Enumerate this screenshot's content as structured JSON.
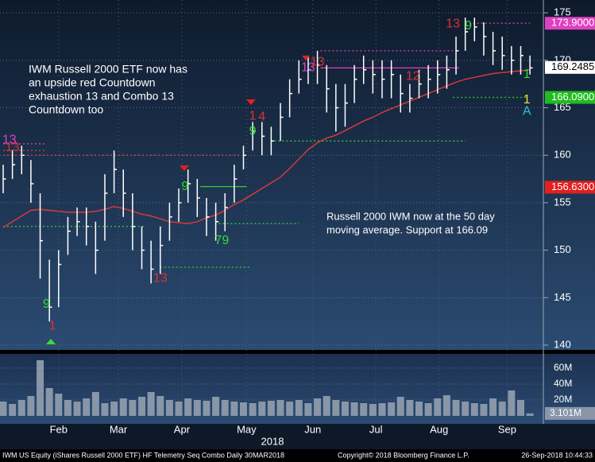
{
  "chart_data": {
    "type": "ohlc",
    "x": [
      0,
      3,
      6,
      9,
      12,
      15,
      18,
      21,
      24,
      27,
      30,
      33,
      36,
      39,
      42,
      45,
      48,
      51,
      54,
      57,
      60,
      63,
      66,
      69,
      72,
      75,
      78,
      81,
      84,
      87,
      90,
      93,
      96,
      99,
      102,
      105,
      108,
      111,
      114,
      117,
      120,
      123,
      126,
      129,
      132,
      135,
      138,
      141,
      144,
      147,
      150,
      153,
      156,
      159,
      162,
      165,
      168,
      171
    ],
    "xlim": [
      0,
      172
    ],
    "xticks": [
      {
        "value": 18,
        "label": "Feb"
      },
      {
        "value": 37.4,
        "label": "Mar"
      },
      {
        "value": 58,
        "label": "Apr"
      },
      {
        "value": 79,
        "label": "May"
      },
      {
        "value": 100.5,
        "label": "Jun"
      },
      {
        "value": 121,
        "label": "Jul"
      },
      {
        "value": 141.5,
        "label": "Aug"
      },
      {
        "value": 163.6,
        "label": "Sep"
      }
    ],
    "x_label": "2018",
    "ylim": [
      139.5,
      176.35
    ],
    "yticks": [
      140,
      145,
      150,
      155,
      160,
      165,
      170,
      175
    ],
    "grid": true,
    "high": [
      159,
      160.5,
      161,
      159.5,
      156,
      149,
      150,
      153.5,
      154.5,
      154.5,
      153,
      158,
      160.5,
      158.5,
      156,
      152.5,
      151,
      152.5,
      155,
      156.5,
      158.5,
      157.5,
      155.5,
      155,
      156,
      159,
      161,
      163.5,
      163.5,
      163,
      165.5,
      168,
      170,
      170.5,
      171,
      169.5,
      167.5,
      167.5,
      169.5,
      170.5,
      170,
      170,
      170,
      168.5,
      167.5,
      169,
      169.5,
      170,
      170.5,
      172.5,
      174.5,
      174.5,
      174,
      173,
      172.5,
      171.5,
      171.5,
      170.5
    ],
    "low": [
      156,
      157.5,
      158,
      155,
      147,
      142.5,
      144,
      149.5,
      151.5,
      150.5,
      147.5,
      151,
      156,
      153.5,
      150,
      148,
      146.5,
      147.5,
      151,
      153,
      155,
      153.5,
      151.5,
      151,
      152,
      155,
      158.5,
      160.5,
      160,
      160,
      161.5,
      164,
      166.5,
      167.5,
      167.5,
      164.5,
      162.5,
      163,
      165.5,
      167.5,
      166.5,
      166,
      166,
      164.5,
      164.5,
      166,
      166,
      166.5,
      167,
      168.5,
      171,
      172,
      170.5,
      169.5,
      169,
      168.5,
      168.5,
      168.5
    ],
    "close": [
      157.5,
      159,
      160,
      157,
      151,
      144,
      148.5,
      152,
      153,
      152.5,
      150,
      156,
      158.5,
      156,
      152.5,
      150,
      148,
      150.5,
      153.5,
      155,
      157,
      155.5,
      153.5,
      153,
      154.5,
      157.5,
      160,
      162.5,
      162,
      161.5,
      164,
      166.5,
      168,
      169,
      169.5,
      167,
      165,
      165.5,
      168,
      169,
      168.5,
      168,
      168.5,
      166.5,
      166,
      167.5,
      168,
      168.5,
      169,
      171,
      173,
      173.5,
      172.5,
      171,
      170.5,
      170,
      170.5,
      169.2
    ],
    "bar_color": "#ffffff",
    "moving_average": {
      "color": "#d63a3a",
      "values": [
        152.4,
        153,
        153.6,
        154.2,
        154.3,
        154.2,
        154.1,
        154,
        154,
        154,
        154.1,
        154.3,
        154.6,
        154.4,
        154.1,
        153.8,
        153.6,
        153.3,
        153,
        152.9,
        152.8,
        153,
        153.4,
        153.7,
        154.2,
        154.8,
        155.3,
        155.9,
        156.5,
        157.1,
        157.7,
        158.6,
        159.6,
        160.6,
        161.3,
        161.8,
        162.1,
        162.6,
        163.1,
        163.6,
        164,
        164.5,
        164.9,
        165.3,
        165.7,
        166.1,
        166.5,
        166.9,
        167.3,
        167.7,
        168,
        168.2,
        168.4,
        168.6,
        168.7,
        168.8,
        168.9,
        169
      ]
    },
    "levels": [
      {
        "value": 173.9,
        "from": 150,
        "to": 171,
        "color": "#e040c0",
        "style": "dotted"
      },
      {
        "value": 171,
        "from": 103,
        "to": 146,
        "color": "#e040c0",
        "style": "dotted"
      },
      {
        "value": 169.2,
        "from": 103,
        "to": 148,
        "color": "#e040c0",
        "style": "solid"
      },
      {
        "value": 166.09,
        "from": 146,
        "to": 170,
        "color": "#33cc33",
        "style": "dotted"
      },
      {
        "value": 161.5,
        "from": 88,
        "to": 150,
        "color": "#33cc33",
        "style": "dotted"
      },
      {
        "value": 156.7,
        "from": 64,
        "to": 79,
        "color": "#33cc33",
        "style": "solid"
      },
      {
        "value": 152.8,
        "from": 70,
        "to": 96,
        "color": "#33cc33",
        "style": "dotted"
      },
      {
        "value": 148.2,
        "from": 51,
        "to": 80,
        "color": "#33cc33",
        "style": "dotted"
      },
      {
        "value": 152.5,
        "from": 0,
        "to": 46,
        "color": "#33cc33",
        "style": "dotted"
      },
      {
        "value": 161.2,
        "from": 0,
        "to": 14,
        "color": "#e040c0",
        "style": "dotted"
      },
      {
        "value": 160.5,
        "from": 0,
        "to": 14,
        "color": "#e04040",
        "style": "dotted"
      },
      {
        "value": 160,
        "from": 0,
        "to": 77,
        "color": "#e04040",
        "style": "dotted"
      }
    ],
    "price_flags": [
      {
        "value": 173.9,
        "label": "173.9000",
        "color": "#e040c0"
      },
      {
        "value": 169.2485,
        "label": "169.2485",
        "color": "#ffffff"
      },
      {
        "value": 166.09,
        "label": "166.0900",
        "color": "#22bb22"
      },
      {
        "value": 156.63,
        "label": "156.6300",
        "color": "#e02020"
      }
    ],
    "counts": [
      {
        "x": 2,
        "y": 161.6,
        "text": "13",
        "color": "#e040c0"
      },
      {
        "x": 3,
        "y": 160.8,
        "text": "13",
        "color": "#e03030"
      },
      {
        "x": 14,
        "y": 144.3,
        "text": "9",
        "color": "#33dd33"
      },
      {
        "x": 16,
        "y": 142,
        "text": "1",
        "color": "#e03030"
      },
      {
        "x": 51,
        "y": 147,
        "text": "13",
        "color": "#e03030"
      },
      {
        "x": 59,
        "y": 156.7,
        "text": "9",
        "color": "#33dd33"
      },
      {
        "x": 71,
        "y": 151,
        "text": "79",
        "color": "#33dd33"
      },
      {
        "x": 81,
        "y": 162.5,
        "text": "9",
        "color": "#33dd33"
      },
      {
        "x": 81,
        "y": 164.1,
        "text": "1",
        "color": "#e03030"
      },
      {
        "x": 84,
        "y": 164,
        "text": "4",
        "color": "#e03030"
      },
      {
        "x": 99,
        "y": 169.2,
        "text": "13",
        "color": "#e040c0"
      },
      {
        "x": 102,
        "y": 169.8,
        "text": "13",
        "color": "#e03030"
      },
      {
        "x": 133,
        "y": 168.3,
        "text": "12",
        "color": "#e03030"
      },
      {
        "x": 146,
        "y": 173.8,
        "text": "13",
        "color": "#e03030"
      },
      {
        "x": 151,
        "y": 173.6,
        "text": "9",
        "color": "#33dd33"
      },
      {
        "x": 170,
        "y": 168.5,
        "text": "1",
        "color": "#33dd33"
      },
      {
        "x": 170,
        "y": 165.8,
        "text": "1",
        "color": "#e8e040"
      },
      {
        "x": 170,
        "y": 164.6,
        "text": "A",
        "color": "#30c0e0"
      }
    ],
    "volume": {
      "color": "#8896a8",
      "ylim": [
        0,
        76
      ],
      "yticks": [
        {
          "value": 20,
          "label": "20M"
        },
        {
          "value": 40,
          "label": "40M"
        },
        {
          "value": 60,
          "label": "60M"
        }
      ],
      "values": [
        18,
        15,
        20,
        25,
        70,
        35,
        28,
        20,
        18,
        22,
        30,
        16,
        18,
        22,
        20,
        24,
        30,
        25,
        20,
        18,
        22,
        20,
        19,
        24,
        20,
        18,
        17,
        16,
        18,
        19,
        20,
        18,
        20,
        16,
        22,
        25,
        20,
        18,
        17,
        16,
        15,
        16,
        17,
        24,
        20,
        18,
        16,
        22,
        26,
        20,
        18,
        16,
        15,
        22,
        18,
        32,
        20,
        3.101
      ],
      "last_label": "3.101M"
    },
    "annotations": [
      [
        "IWM Russell 2000 ETF now has",
        "an upside red Countdown",
        "exhaustion 13 and Combo 13",
        "Countdown too"
      ],
      [
        "Russell 2000 IWM now at the 50 day",
        "moving average.  Support at 166.09"
      ]
    ],
    "footer": {
      "left": "IWM US Equity (iShares Russell 2000 ETF) HF Telemetry Seq Combo  Daily 30MAR2018",
      "center": "Copyright© 2018 Bloomberg Finance L.P.",
      "right": "26-Sep-2018 10:44:33"
    }
  }
}
